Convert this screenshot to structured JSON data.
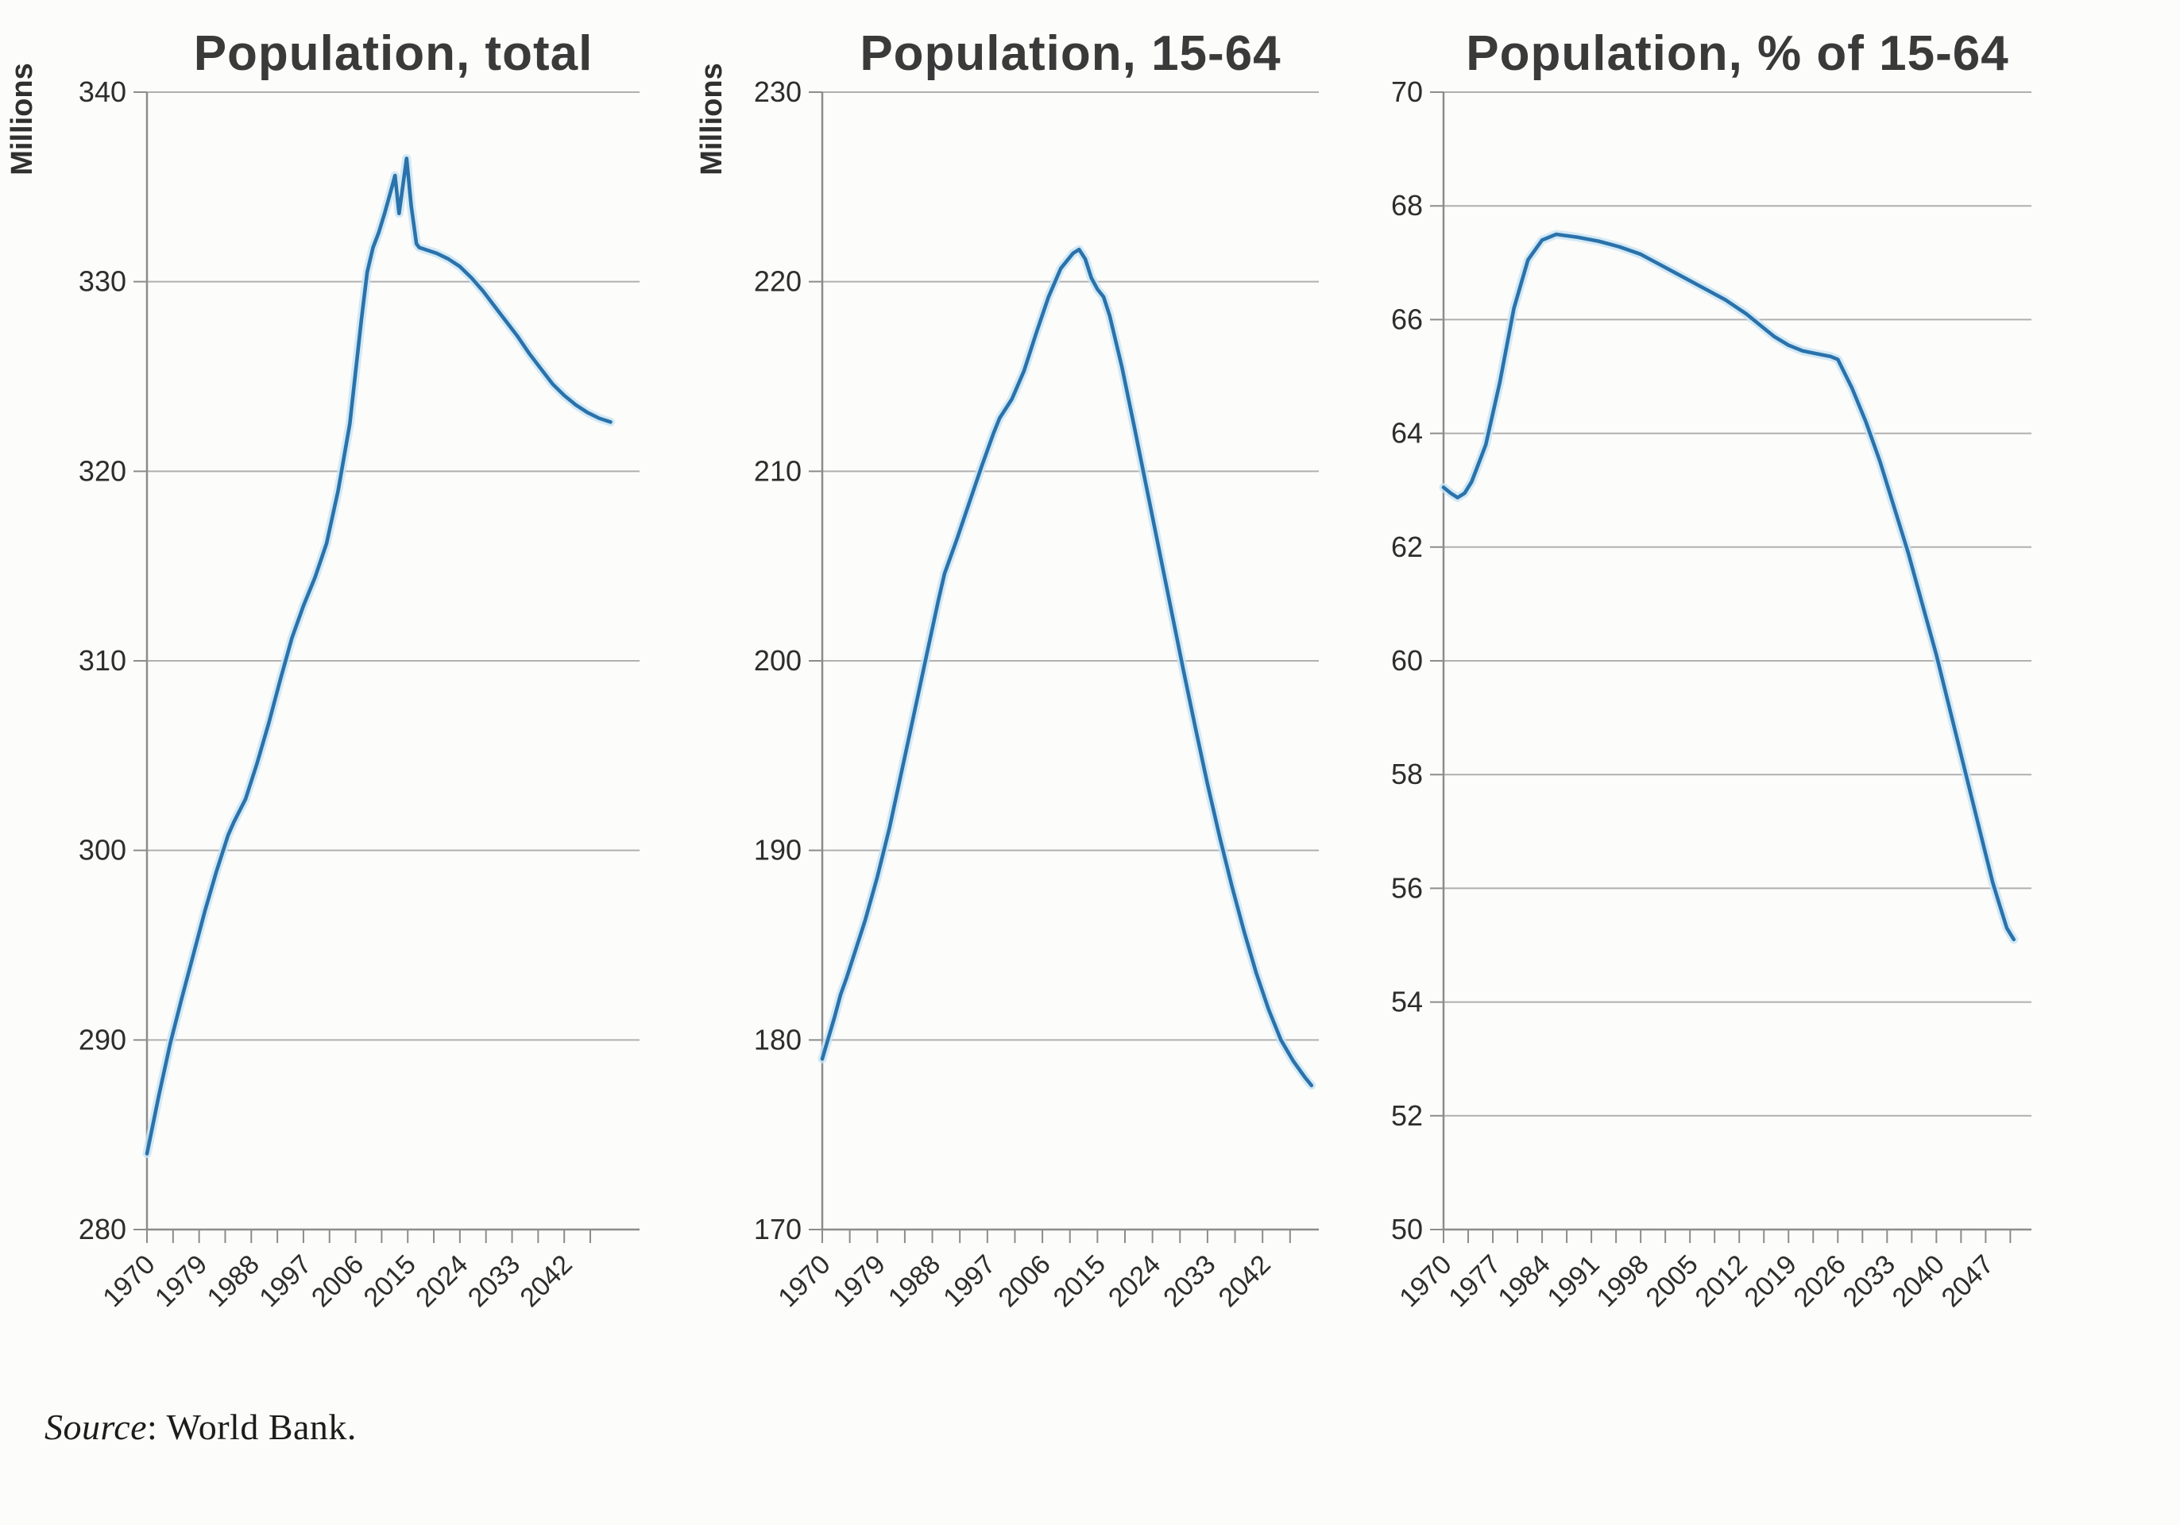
{
  "figure": {
    "source_prefix": "Source",
    "source_rest": ": World Bank."
  },
  "colors": {
    "line": "#2a72ab",
    "line_halo": "#c8e4f4",
    "grid": "#b0b0b0",
    "axis": "#8c8c8c",
    "tick_text": "#2d2d2d",
    "title_text": "#3a3a3a",
    "background": "#fcfcfa"
  },
  "chart_data": [
    {
      "id": "population-total",
      "type": "line",
      "title": "Population, total",
      "ylabel": "Millions",
      "xlabel": "",
      "grid": true,
      "legend": "none",
      "ylim": [
        280,
        340
      ],
      "yticks": [
        280,
        290,
        300,
        310,
        320,
        330,
        340
      ],
      "xlim": [
        1970,
        2055
      ],
      "xticks": [
        1970,
        1979,
        1988,
        1997,
        2006,
        2015,
        2024,
        2033,
        2042
      ],
      "series": [
        {
          "name": "Population, total",
          "points": [
            [
              1970,
              284.0
            ],
            [
              1972,
              287.0
            ],
            [
              1974,
              289.8
            ],
            [
              1976,
              292.2
            ],
            [
              1978,
              294.5
            ],
            [
              1980,
              296.8
            ],
            [
              1982,
              298.9
            ],
            [
              1984,
              300.8
            ],
            [
              1985,
              301.5
            ],
            [
              1987,
              302.7
            ],
            [
              1989,
              304.6
            ],
            [
              1991,
              306.7
            ],
            [
              1993,
              309.0
            ],
            [
              1995,
              311.2
            ],
            [
              1997,
              312.9
            ],
            [
              1999,
              314.4
            ],
            [
              2001,
              316.2
            ],
            [
              2003,
              319.0
            ],
            [
              2005,
              322.5
            ],
            [
              2007,
              328.0
            ],
            [
              2008,
              330.5
            ],
            [
              2009,
              331.8
            ],
            [
              2010,
              332.6
            ],
            [
              2011,
              333.6
            ],
            [
              2012,
              334.7
            ],
            [
              2012.8,
              335.6
            ],
            [
              2013.5,
              333.6
            ],
            [
              2014.8,
              336.5
            ],
            [
              2015.6,
              334.0
            ],
            [
              2016.5,
              332.0
            ],
            [
              2017,
              331.8
            ],
            [
              2018,
              331.7
            ],
            [
              2020,
              331.5
            ],
            [
              2022,
              331.2
            ],
            [
              2024,
              330.8
            ],
            [
              2026,
              330.2
            ],
            [
              2028,
              329.5
            ],
            [
              2030,
              328.7
            ],
            [
              2032,
              327.9
            ],
            [
              2034,
              327.1
            ],
            [
              2036,
              326.2
            ],
            [
              2038,
              325.4
            ],
            [
              2040,
              324.6
            ],
            [
              2042,
              324.0
            ],
            [
              2044,
              323.5
            ],
            [
              2046,
              323.1
            ],
            [
              2048,
              322.8
            ],
            [
              2050,
              322.6
            ]
          ]
        }
      ]
    },
    {
      "id": "population-15-64",
      "type": "line",
      "title": "Population, 15-64",
      "ylabel": "Millions",
      "xlabel": "",
      "grid": true,
      "legend": "none",
      "ylim": [
        170,
        230
      ],
      "yticks": [
        170,
        180,
        190,
        200,
        210,
        220,
        230
      ],
      "xlim": [
        1970,
        2051.2
      ],
      "xticks": [
        1970,
        1979,
        1988,
        1997,
        2006,
        2015,
        2024,
        2033,
        2042
      ],
      "series": [
        {
          "name": "Population, 15-64",
          "points": [
            [
              1970,
              179.0
            ],
            [
              1971,
              180.1
            ],
            [
              1972,
              181.2
            ],
            [
              1973,
              182.4
            ],
            [
              1974,
              183.3
            ],
            [
              1975,
              184.3
            ],
            [
              1977,
              186.3
            ],
            [
              1979,
              188.6
            ],
            [
              1981,
              191.2
            ],
            [
              1983,
              194.2
            ],
            [
              1985,
              197.2
            ],
            [
              1987,
              200.2
            ],
            [
              1989,
              203.2
            ],
            [
              1990,
              204.6
            ],
            [
              1992,
              206.4
            ],
            [
              1994,
              208.3
            ],
            [
              1996,
              210.2
            ],
            [
              1998,
              212.0
            ],
            [
              1999,
              212.8
            ],
            [
              2001,
              213.8
            ],
            [
              2003,
              215.3
            ],
            [
              2005,
              217.3
            ],
            [
              2007,
              219.2
            ],
            [
              2009,
              220.7
            ],
            [
              2011,
              221.5
            ],
            [
              2012,
              221.7
            ],
            [
              2013,
              221.2
            ],
            [
              2014,
              220.2
            ],
            [
              2015,
              219.6
            ],
            [
              2016,
              219.2
            ],
            [
              2017,
              218.2
            ],
            [
              2019,
              215.5
            ],
            [
              2021,
              212.4
            ],
            [
              2023,
              209.2
            ],
            [
              2025,
              206.0
            ],
            [
              2027,
              202.8
            ],
            [
              2029,
              199.6
            ],
            [
              2031,
              196.5
            ],
            [
              2033,
              193.5
            ],
            [
              2035,
              190.7
            ],
            [
              2037,
              188.1
            ],
            [
              2039,
              185.7
            ],
            [
              2041,
              183.5
            ],
            [
              2043,
              181.6
            ],
            [
              2045,
              180.0
            ],
            [
              2047,
              178.9
            ],
            [
              2049,
              178.0
            ],
            [
              2050,
              177.6
            ]
          ]
        }
      ]
    },
    {
      "id": "population-pct-15-64",
      "type": "line",
      "title": "Population, % of 15-64",
      "ylabel": "",
      "xlabel": "",
      "grid": true,
      "legend": "none",
      "ylim": [
        50,
        70
      ],
      "yticks": [
        50,
        52,
        54,
        56,
        58,
        60,
        62,
        64,
        66,
        68,
        70
      ],
      "xlim": [
        1970,
        2053.5
      ],
      "xticks": [
        1970,
        1977,
        1984,
        1991,
        1998,
        2005,
        2012,
        2019,
        2026,
        2033,
        2040,
        2047
      ],
      "series": [
        {
          "name": "Population, % of 15-64",
          "points": [
            [
              1970,
              63.05
            ],
            [
              1971,
              62.95
            ],
            [
              1972,
              62.87
            ],
            [
              1973,
              62.95
            ],
            [
              1974,
              63.15
            ],
            [
              1976,
              63.8
            ],
            [
              1978,
              64.9
            ],
            [
              1980,
              66.2
            ],
            [
              1982,
              67.05
            ],
            [
              1984,
              67.4
            ],
            [
              1986,
              67.5
            ],
            [
              1989,
              67.45
            ],
            [
              1992,
              67.38
            ],
            [
              1995,
              67.28
            ],
            [
              1998,
              67.15
            ],
            [
              2001,
              66.95
            ],
            [
              2004,
              66.75
            ],
            [
              2007,
              66.55
            ],
            [
              2010,
              66.35
            ],
            [
              2013,
              66.1
            ],
            [
              2015,
              65.9
            ],
            [
              2017,
              65.7
            ],
            [
              2019,
              65.55
            ],
            [
              2021,
              65.45
            ],
            [
              2023,
              65.4
            ],
            [
              2025,
              65.35
            ],
            [
              2026,
              65.3
            ],
            [
              2028,
              64.8
            ],
            [
              2030,
              64.2
            ],
            [
              2032,
              63.5
            ],
            [
              2034,
              62.7
            ],
            [
              2036,
              61.9
            ],
            [
              2038,
              61.0
            ],
            [
              2040,
              60.1
            ],
            [
              2042,
              59.1
            ],
            [
              2044,
              58.1
            ],
            [
              2046,
              57.1
            ],
            [
              2047,
              56.6
            ],
            [
              2048,
              56.1
            ],
            [
              2049,
              55.7
            ],
            [
              2050,
              55.3
            ],
            [
              2051,
              55.1
            ]
          ]
        }
      ]
    }
  ]
}
